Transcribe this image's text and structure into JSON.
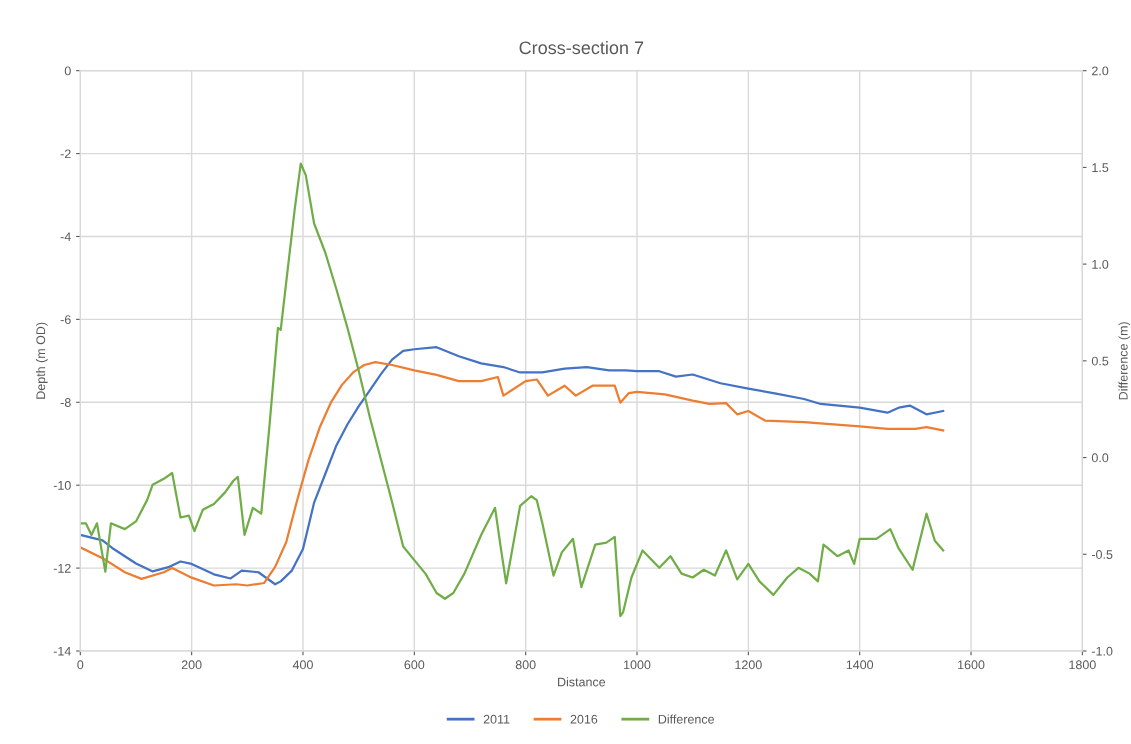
{
  "chart_data": {
    "type": "line",
    "title": "Cross-section 7",
    "xlabel": "Distance",
    "ylabel": "Depth (m OD)",
    "y2label": "Difference (m)",
    "xlim": [
      0,
      1800
    ],
    "xticks": [
      0,
      200,
      400,
      600,
      800,
      1000,
      1200,
      1400,
      1600,
      1800
    ],
    "ylim": [
      -14,
      0
    ],
    "yticks": [
      -14,
      -12,
      -10,
      -8,
      -6,
      -4,
      -2,
      0
    ],
    "y2lim": [
      -1,
      2
    ],
    "y2ticks": [
      {
        "value": -1,
        "label": "-1.0"
      },
      {
        "value": -0.5,
        "label": "-0.5"
      },
      {
        "value": 0,
        "label": "0.0"
      },
      {
        "value": 0.5,
        "label": "0.5"
      },
      {
        "value": 1,
        "label": "1.0"
      },
      {
        "value": 1.5,
        "label": "1.5"
      },
      {
        "value": 2,
        "label": "2.0"
      }
    ],
    "grid": true,
    "legend": "bottom",
    "marker": "none",
    "line_style": "solid",
    "series": [
      {
        "name": "2011",
        "color": "#4472c4",
        "x": [
          0,
          40,
          60,
          100,
          130,
          160,
          180,
          200,
          240,
          270,
          290,
          320,
          350,
          360,
          380,
          400,
          420,
          440,
          460,
          480,
          500,
          520,
          540,
          560,
          580,
          600,
          640,
          680,
          720,
          760,
          790,
          830,
          870,
          910,
          950,
          980,
          1000,
          1040,
          1070,
          1100,
          1150,
          1200,
          1250,
          1300,
          1330,
          1400,
          1450,
          1470,
          1490,
          1520,
          1550
        ],
        "values": [
          -11.2,
          -11.33,
          -11.54,
          -11.89,
          -12.08,
          -11.97,
          -11.84,
          -11.9,
          -12.15,
          -12.25,
          -12.06,
          -12.1,
          -12.39,
          -12.32,
          -12.06,
          -11.54,
          -10.42,
          -9.73,
          -9.04,
          -8.53,
          -8.1,
          -7.71,
          -7.32,
          -6.97,
          -6.76,
          -6.72,
          -6.67,
          -6.89,
          -7.06,
          -7.15,
          -7.28,
          -7.28,
          -7.19,
          -7.15,
          -7.23,
          -7.23,
          -7.25,
          -7.25,
          -7.38,
          -7.33,
          -7.54,
          -7.67,
          -7.79,
          -7.92,
          -8.04,
          -8.13,
          -8.25,
          -8.13,
          -8.08,
          -8.29,
          -8.21
        ]
      },
      {
        "name": "2016",
        "color": "#ed7d31",
        "x": [
          0,
          40,
          80,
          110,
          150,
          165,
          200,
          240,
          280,
          300,
          330,
          350,
          370,
          390,
          410,
          430,
          450,
          470,
          490,
          510,
          530,
          560,
          600,
          640,
          680,
          720,
          750,
          760,
          800,
          820,
          840,
          870,
          890,
          920,
          960,
          970,
          985,
          1000,
          1050,
          1100,
          1130,
          1160,
          1180,
          1200,
          1230,
          1300,
          1400,
          1450,
          1500,
          1520,
          1550
        ],
        "values": [
          -11.5,
          -11.76,
          -12.1,
          -12.26,
          -12.1,
          -12.0,
          -12.23,
          -12.42,
          -12.39,
          -12.42,
          -12.36,
          -11.97,
          -11.37,
          -10.34,
          -9.39,
          -8.61,
          -8.01,
          -7.58,
          -7.28,
          -7.1,
          -7.03,
          -7.1,
          -7.23,
          -7.34,
          -7.49,
          -7.49,
          -7.39,
          -7.84,
          -7.49,
          -7.45,
          -7.84,
          -7.6,
          -7.84,
          -7.6,
          -7.6,
          -8.01,
          -7.78,
          -7.75,
          -7.81,
          -7.96,
          -8.04,
          -8.02,
          -8.29,
          -8.21,
          -8.44,
          -8.48,
          -8.58,
          -8.64,
          -8.64,
          -8.6,
          -8.68
        ]
      },
      {
        "name": "Difference",
        "color": "#70ad47",
        "axis": "y2",
        "x": [
          0,
          10,
          20,
          30,
          45,
          55,
          80,
          100,
          120,
          130,
          150,
          165,
          180,
          195,
          205,
          220,
          240,
          260,
          275,
          283,
          295,
          310,
          325,
          340,
          355,
          360,
          370,
          385,
          396,
          405,
          420,
          440,
          460,
          480,
          500,
          520,
          540,
          560,
          580,
          600,
          620,
          640,
          655,
          670,
          690,
          720,
          745,
          755,
          765,
          790,
          810,
          820,
          830,
          850,
          865,
          885,
          900,
          925,
          945,
          960,
          970,
          975,
          990,
          1010,
          1040,
          1060,
          1080,
          1100,
          1120,
          1140,
          1160,
          1180,
          1200,
          1220,
          1245,
          1270,
          1290,
          1310,
          1325,
          1335,
          1360,
          1380,
          1390,
          1400,
          1430,
          1455,
          1470,
          1495,
          1520,
          1535,
          1550
        ],
        "values": [
          -0.34,
          -0.34,
          -0.4,
          -0.34,
          -0.59,
          -0.34,
          -0.37,
          -0.33,
          -0.22,
          -0.14,
          -0.11,
          -0.08,
          -0.31,
          -0.3,
          -0.38,
          -0.27,
          -0.24,
          -0.18,
          -0.12,
          -0.1,
          -0.4,
          -0.26,
          -0.29,
          0.17,
          0.67,
          0.66,
          0.91,
          1.28,
          1.52,
          1.46,
          1.21,
          1.06,
          0.87,
          0.67,
          0.45,
          0.21,
          -0.01,
          -0.23,
          -0.46,
          -0.53,
          -0.6,
          -0.7,
          -0.73,
          -0.7,
          -0.6,
          -0.4,
          -0.26,
          -0.46,
          -0.65,
          -0.25,
          -0.2,
          -0.22,
          -0.34,
          -0.61,
          -0.49,
          -0.42,
          -0.67,
          -0.45,
          -0.44,
          -0.41,
          -0.82,
          -0.8,
          -0.62,
          -0.48,
          -0.57,
          -0.51,
          -0.6,
          -0.62,
          -0.58,
          -0.61,
          -0.48,
          -0.63,
          -0.55,
          -0.64,
          -0.71,
          -0.62,
          -0.57,
          -0.6,
          -0.64,
          -0.45,
          -0.51,
          -0.48,
          -0.55,
          -0.42,
          -0.42,
          -0.37,
          -0.47,
          -0.58,
          -0.29,
          -0.43,
          -0.48
        ]
      }
    ]
  }
}
